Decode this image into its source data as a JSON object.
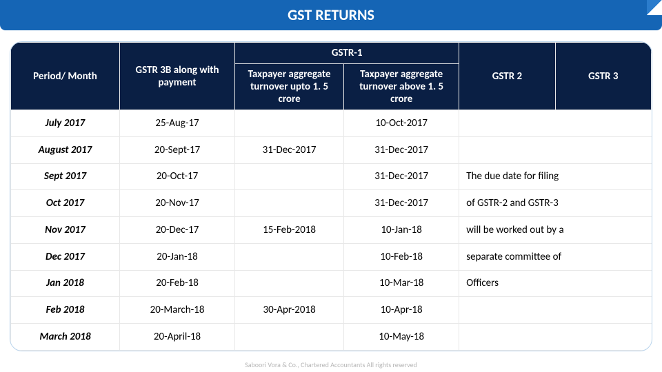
{
  "title": "GST RETURNS",
  "footer": "Saboori Vora & Co., Chartered Accountants All rights reserved",
  "headers": {
    "period": "Period/ Month",
    "gstr3b": "GSTR 3B along with payment",
    "gstr1_super": "GSTR-1",
    "gstr1_low": "Taxpayer aggregate turnover upto 1. 5 crore",
    "gstr1_high": "Taxpayer aggregate turnover above 1. 5 crore",
    "gstr2": "GSTR 2",
    "gstr3": "GSTR 3"
  },
  "rows": [
    {
      "period": "July 2017",
      "gstr3b": "25-Aug-17",
      "low": "",
      "high": "10-Oct-2017",
      "note": ""
    },
    {
      "period": "August 2017",
      "gstr3b": "20-Sept-17",
      "low": "31-Dec-2017",
      "high": "31-Dec-2017",
      "note": ""
    },
    {
      "period": "Sept 2017",
      "gstr3b": "20-Oct-17",
      "low": "",
      "high": "31-Dec-2017",
      "note": "The due date for filing"
    },
    {
      "period": "Oct 2017",
      "gstr3b": "20-Nov-17",
      "low": "",
      "high": "31-Dec-2017",
      "note": "of GSTR-2 and GSTR-3"
    },
    {
      "period": "Nov 2017",
      "gstr3b": "20-Dec-17",
      "low": "15-Feb-2018",
      "high": "10-Jan-18",
      "note": "will be worked out by a"
    },
    {
      "period": "Dec 2017",
      "gstr3b": "20-Jan-18",
      "low": "",
      "high": "10-Feb-18",
      "note": "separate committee of"
    },
    {
      "period": "Jan 2018",
      "gstr3b": "20-Feb-18",
      "low": "",
      "high": "10-Mar-18",
      "note": "Officers"
    },
    {
      "period": "Feb 2018",
      "gstr3b": "20-March-18",
      "low": "30-Apr-2018",
      "high": "10-Apr-18",
      "note": ""
    },
    {
      "period": "March 2018",
      "gstr3b": "20-April-18",
      "low": "",
      "high": "10-May-18",
      "note": ""
    }
  ],
  "style": {
    "title_bg": "#1565b5",
    "header_bg": "#0a1f44",
    "header_fg": "#ffffff",
    "grid_color": "#e8e8e8",
    "frame_border": "#b9d4ec",
    "font_family": "Calibri, Arial, sans-serif",
    "title_fontsize": 22,
    "cell_fontsize": 15
  }
}
